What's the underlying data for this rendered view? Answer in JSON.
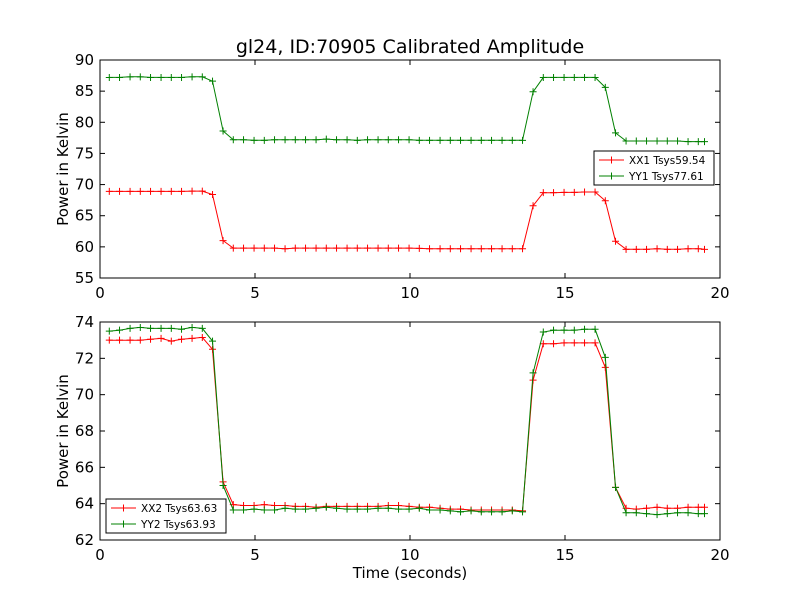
{
  "figure_title": "gl24, ID:70905 Calibrated Amplitude",
  "chart_data": [
    {
      "type": "line",
      "xlabel": "",
      "ylabel": "Power in Kelvin",
      "xlim": [
        0,
        20
      ],
      "ylim": [
        55,
        90
      ],
      "xticks": [
        "0",
        "5",
        "10",
        "15",
        "20"
      ],
      "yticks": [
        "55",
        "60",
        "65",
        "70",
        "75",
        "80",
        "85",
        "90"
      ],
      "grid": false,
      "legend_position": "right",
      "x": [
        0.3,
        0.63,
        0.97,
        1.3,
        1.63,
        1.97,
        2.3,
        2.63,
        2.97,
        3.3,
        3.63,
        3.97,
        4.3,
        4.63,
        4.97,
        5.3,
        5.63,
        5.97,
        6.3,
        6.63,
        6.97,
        7.3,
        7.63,
        7.97,
        8.3,
        8.63,
        8.97,
        9.3,
        9.63,
        9.97,
        10.3,
        10.63,
        10.97,
        11.3,
        11.63,
        11.97,
        12.3,
        12.63,
        12.97,
        13.3,
        13.63,
        13.97,
        14.3,
        14.63,
        14.97,
        15.3,
        15.63,
        15.97,
        16.3,
        16.63,
        16.97,
        17.3,
        17.63,
        17.97,
        18.3,
        18.63,
        18.97,
        19.3,
        19.5
      ],
      "series": [
        {
          "name": "XX1 Tsys59.54",
          "color": "#ff0000",
          "values": [
            68.9,
            68.9,
            68.9,
            68.9,
            68.9,
            68.9,
            68.9,
            68.9,
            68.95,
            68.95,
            68.4,
            61.0,
            59.8,
            59.8,
            59.8,
            59.8,
            59.8,
            59.7,
            59.8,
            59.8,
            59.8,
            59.8,
            59.8,
            59.8,
            59.8,
            59.8,
            59.8,
            59.8,
            59.8,
            59.8,
            59.75,
            59.7,
            59.7,
            59.7,
            59.7,
            59.7,
            59.7,
            59.7,
            59.7,
            59.7,
            59.7,
            66.6,
            68.7,
            68.7,
            68.75,
            68.75,
            68.8,
            68.8,
            67.4,
            60.9,
            59.6,
            59.6,
            59.6,
            59.7,
            59.6,
            59.6,
            59.7,
            59.7,
            59.6
          ]
        },
        {
          "name": "YY1 Tsys77.61",
          "color": "#008000",
          "values": [
            87.2,
            87.2,
            87.3,
            87.3,
            87.2,
            87.2,
            87.2,
            87.2,
            87.3,
            87.3,
            86.6,
            78.6,
            77.2,
            77.2,
            77.1,
            77.1,
            77.2,
            77.2,
            77.2,
            77.2,
            77.2,
            77.3,
            77.2,
            77.2,
            77.1,
            77.2,
            77.2,
            77.2,
            77.2,
            77.2,
            77.1,
            77.1,
            77.1,
            77.1,
            77.1,
            77.1,
            77.1,
            77.1,
            77.1,
            77.1,
            77.1,
            84.9,
            87.2,
            87.2,
            87.2,
            87.2,
            87.2,
            87.2,
            85.6,
            78.3,
            77.0,
            77.0,
            77.0,
            77.0,
            77.0,
            77.0,
            76.9,
            76.9,
            76.9
          ]
        }
      ]
    },
    {
      "type": "line",
      "xlabel": "Time (seconds)",
      "ylabel": "Power in Kelvin",
      "xlim": [
        0,
        20
      ],
      "ylim": [
        62,
        74
      ],
      "xticks": [
        "0",
        "5",
        "10",
        "15",
        "20"
      ],
      "yticks": [
        "62",
        "64",
        "66",
        "68",
        "70",
        "72",
        "74"
      ],
      "grid": false,
      "legend_position": "bottom-left",
      "x": [
        0.3,
        0.63,
        0.97,
        1.3,
        1.63,
        1.97,
        2.3,
        2.63,
        2.97,
        3.3,
        3.63,
        3.97,
        4.3,
        4.63,
        4.97,
        5.3,
        5.63,
        5.97,
        6.3,
        6.63,
        6.97,
        7.3,
        7.63,
        7.97,
        8.3,
        8.63,
        8.97,
        9.3,
        9.63,
        9.97,
        10.3,
        10.63,
        10.97,
        11.3,
        11.63,
        11.97,
        12.3,
        12.63,
        12.97,
        13.3,
        13.63,
        13.97,
        14.3,
        14.63,
        14.97,
        15.3,
        15.63,
        15.97,
        16.3,
        16.63,
        16.97,
        17.3,
        17.63,
        17.97,
        18.3,
        18.63,
        18.97,
        19.3,
        19.5
      ],
      "series": [
        {
          "name": "XX2 Tsys63.63",
          "color": "#ff0000",
          "values": [
            73.0,
            73.0,
            73.0,
            73.0,
            73.05,
            73.1,
            72.95,
            73.05,
            73.1,
            73.15,
            72.5,
            65.2,
            63.95,
            63.9,
            63.9,
            63.95,
            63.9,
            63.9,
            63.85,
            63.85,
            63.8,
            63.85,
            63.85,
            63.85,
            63.85,
            63.85,
            63.85,
            63.9,
            63.9,
            63.85,
            63.8,
            63.8,
            63.75,
            63.7,
            63.7,
            63.65,
            63.65,
            63.65,
            63.65,
            63.65,
            63.6,
            70.8,
            72.8,
            72.8,
            72.85,
            72.85,
            72.85,
            72.85,
            71.5,
            64.9,
            63.75,
            63.7,
            63.75,
            63.8,
            63.75,
            63.75,
            63.8,
            63.8,
            63.8
          ]
        },
        {
          "name": "YY2 Tsys63.93",
          "color": "#008000",
          "values": [
            73.5,
            73.55,
            73.65,
            73.7,
            73.65,
            73.65,
            73.65,
            73.6,
            73.7,
            73.65,
            72.95,
            65.0,
            63.65,
            63.65,
            63.7,
            63.65,
            63.65,
            63.75,
            63.7,
            63.7,
            63.75,
            63.8,
            63.75,
            63.7,
            63.7,
            63.7,
            63.75,
            63.75,
            63.7,
            63.7,
            63.75,
            63.65,
            63.65,
            63.6,
            63.55,
            63.6,
            63.55,
            63.55,
            63.55,
            63.6,
            63.55,
            71.2,
            73.45,
            73.55,
            73.55,
            73.55,
            73.6,
            73.6,
            72.05,
            64.9,
            63.5,
            63.5,
            63.45,
            63.4,
            63.45,
            63.5,
            63.5,
            63.45,
            63.45
          ]
        }
      ]
    }
  ]
}
